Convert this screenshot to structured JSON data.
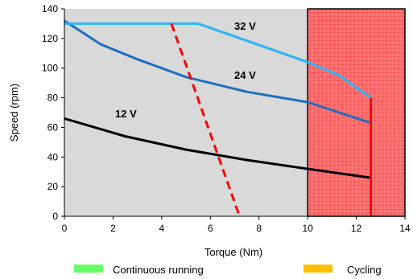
{
  "chart_data": {
    "type": "line",
    "xlabel": "Torque (Nm)",
    "ylabel": "Speed (rpm)",
    "xlim": [
      0,
      14
    ],
    "ylim": [
      0,
      140
    ],
    "x_ticks": [
      0,
      2,
      4,
      6,
      8,
      10,
      12,
      14
    ],
    "y_ticks": [
      0,
      20,
      40,
      60,
      80,
      100,
      120,
      140
    ],
    "grid": false,
    "plot_background": "#d9d9d9",
    "series": [
      {
        "name": "12 V",
        "color": "#000000",
        "style": "solid",
        "x": [
          0,
          2.5,
          5,
          7.5,
          10,
          12.6
        ],
        "y": [
          66,
          54,
          45,
          38,
          32,
          26
        ]
      },
      {
        "name": "24 V",
        "color": "#1f6fbf",
        "style": "solid",
        "x": [
          0,
          1.5,
          3,
          5,
          7.5,
          10,
          12.6
        ],
        "y": [
          132,
          116,
          106,
          94,
          84,
          77,
          63
        ]
      },
      {
        "name": "32 V",
        "color": "#29b6f6",
        "style": "solid",
        "x": [
          0,
          5.5,
          10,
          11.3,
          12.6,
          12.6
        ],
        "y": [
          130,
          130,
          104,
          95,
          80,
          0
        ]
      },
      {
        "color": "#ff0000",
        "style": "dashed",
        "x": [
          4.4,
          7.2
        ],
        "y": [
          130,
          0
        ]
      }
    ],
    "regions": [
      {
        "x_from": 10,
        "x_to": 14,
        "color": "#ff6666",
        "pattern": "grid"
      }
    ],
    "legend": {
      "position": "bottom",
      "items": [
        {
          "label": "Continuous running",
          "color": "#66ff66"
        },
        {
          "label": "Cycling",
          "color": "#ffc000"
        }
      ]
    }
  }
}
